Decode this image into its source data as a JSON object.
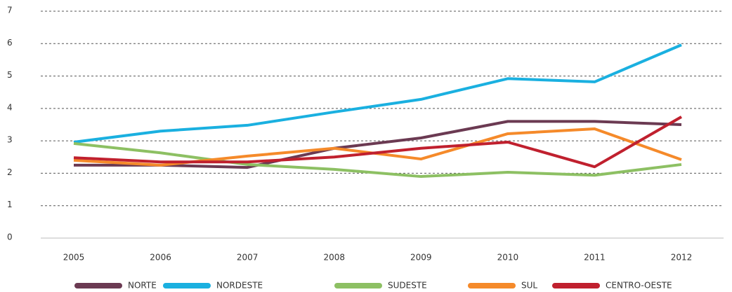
{
  "chart_data": {
    "type": "line",
    "x": [
      "2005",
      "2006",
      "2007",
      "2008",
      "2009",
      "2010",
      "2011",
      "2012"
    ],
    "series": [
      {
        "name": "NORTE",
        "color": "#6b3a52",
        "values": [
          2.25,
          2.25,
          2.18,
          2.77,
          3.09,
          3.6,
          3.6,
          3.5
        ]
      },
      {
        "name": "NORDESTE",
        "color": "#1ab0e0",
        "values": [
          2.96,
          3.3,
          3.48,
          3.89,
          4.28,
          4.92,
          4.82,
          5.96
        ]
      },
      {
        "name": "SUDESTE",
        "color": "#8dc063",
        "values": [
          2.92,
          2.63,
          2.27,
          2.12,
          1.9,
          2.03,
          1.94,
          2.27
        ]
      },
      {
        "name": "SUL",
        "color": "#f58a2a",
        "values": [
          2.4,
          2.25,
          2.53,
          2.77,
          2.44,
          3.22,
          3.37,
          2.42
        ]
      },
      {
        "name": "CENTRO-OESTE",
        "color": "#c0202e",
        "values": [
          2.48,
          2.35,
          2.35,
          2.5,
          2.77,
          2.96,
          2.2,
          3.74
        ]
      }
    ],
    "ylim": [
      0,
      7
    ],
    "yticks": [
      0,
      1,
      2,
      3,
      4,
      5,
      6,
      7
    ],
    "grid": true,
    "legend": "bottom"
  }
}
